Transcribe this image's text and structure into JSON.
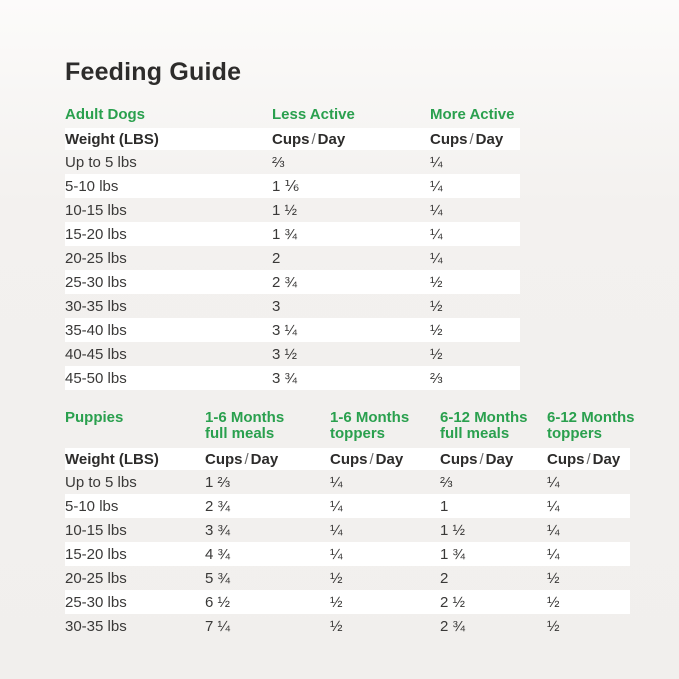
{
  "page": {
    "title": "Feeding Guide"
  },
  "colors": {
    "accent_green": "#2aa04e",
    "text_dark": "#2d2c2b",
    "stripe_white": "#ffffff",
    "background_gray": "#f1efed"
  },
  "adult_table": {
    "section_label": "Adult Dogs",
    "activity_columns": [
      "Less Active",
      "More Active"
    ],
    "weight_header": "Weight (LBS)",
    "unit_header": {
      "word1": "Cups",
      "sep": "/",
      "word2": "Day"
    },
    "rows": [
      {
        "weight": "Up to 5 lbs",
        "less_active": "⅔",
        "more_active": "¼"
      },
      {
        "weight": "5-10 lbs",
        "less_active": "1 ⅙",
        "more_active": "¼"
      },
      {
        "weight": "10-15 lbs",
        "less_active": "1 ½",
        "more_active": "¼"
      },
      {
        "weight": "15-20 lbs",
        "less_active": "1 ¾",
        "more_active": "¼"
      },
      {
        "weight": "20-25 lbs",
        "less_active": "2",
        "more_active": "¼"
      },
      {
        "weight": "25-30 lbs",
        "less_active": "2 ¾",
        "more_active": "½"
      },
      {
        "weight": "30-35 lbs",
        "less_active": "3",
        "more_active": "½"
      },
      {
        "weight": "35-40 lbs",
        "less_active": "3 ¼",
        "more_active": "½"
      },
      {
        "weight": "40-45 lbs",
        "less_active": "3 ½",
        "more_active": "½"
      },
      {
        "weight": "45-50 lbs",
        "less_active": "3 ¾",
        "more_active": "⅔"
      }
    ]
  },
  "puppy_table": {
    "section_label": "Puppies",
    "age_columns": [
      {
        "line1": "1-6 Months",
        "line2": "full meals"
      },
      {
        "line1": "1-6 Months",
        "line2": "toppers"
      },
      {
        "line1": "6-12 Months",
        "line2": "full meals"
      },
      {
        "line1": "6-12 Months",
        "line2": "toppers"
      }
    ],
    "weight_header": "Weight (LBS)",
    "unit_header": {
      "word1": "Cups",
      "sep": "/",
      "word2": "Day"
    },
    "rows": [
      {
        "weight": "Up to 5 lbs",
        "meals_1_6": "1 ⅔",
        "toppers_1_6": "¼",
        "meals_6_12": "⅔",
        "toppers_6_12": "¼"
      },
      {
        "weight": "5-10 lbs",
        "meals_1_6": "2 ¾",
        "toppers_1_6": "¼",
        "meals_6_12": "1",
        "toppers_6_12": "¼"
      },
      {
        "weight": "10-15 lbs",
        "meals_1_6": "3 ¾",
        "toppers_1_6": "¼",
        "meals_6_12": "1 ½",
        "toppers_6_12": "¼"
      },
      {
        "weight": "15-20 lbs",
        "meals_1_6": "4 ¾",
        "toppers_1_6": "¼",
        "meals_6_12": "1 ¾",
        "toppers_6_12": "¼"
      },
      {
        "weight": "20-25 lbs",
        "meals_1_6": "5 ¾",
        "toppers_1_6": "½",
        "meals_6_12": "2",
        "toppers_6_12": "½"
      },
      {
        "weight": "25-30 lbs",
        "meals_1_6": "6 ½",
        "toppers_1_6": "½",
        "meals_6_12": "2 ½",
        "toppers_6_12": "½"
      },
      {
        "weight": "30-35 lbs",
        "meals_1_6": "7 ¼",
        "toppers_1_6": "½",
        "meals_6_12": "2 ¾",
        "toppers_6_12": "½"
      }
    ]
  }
}
